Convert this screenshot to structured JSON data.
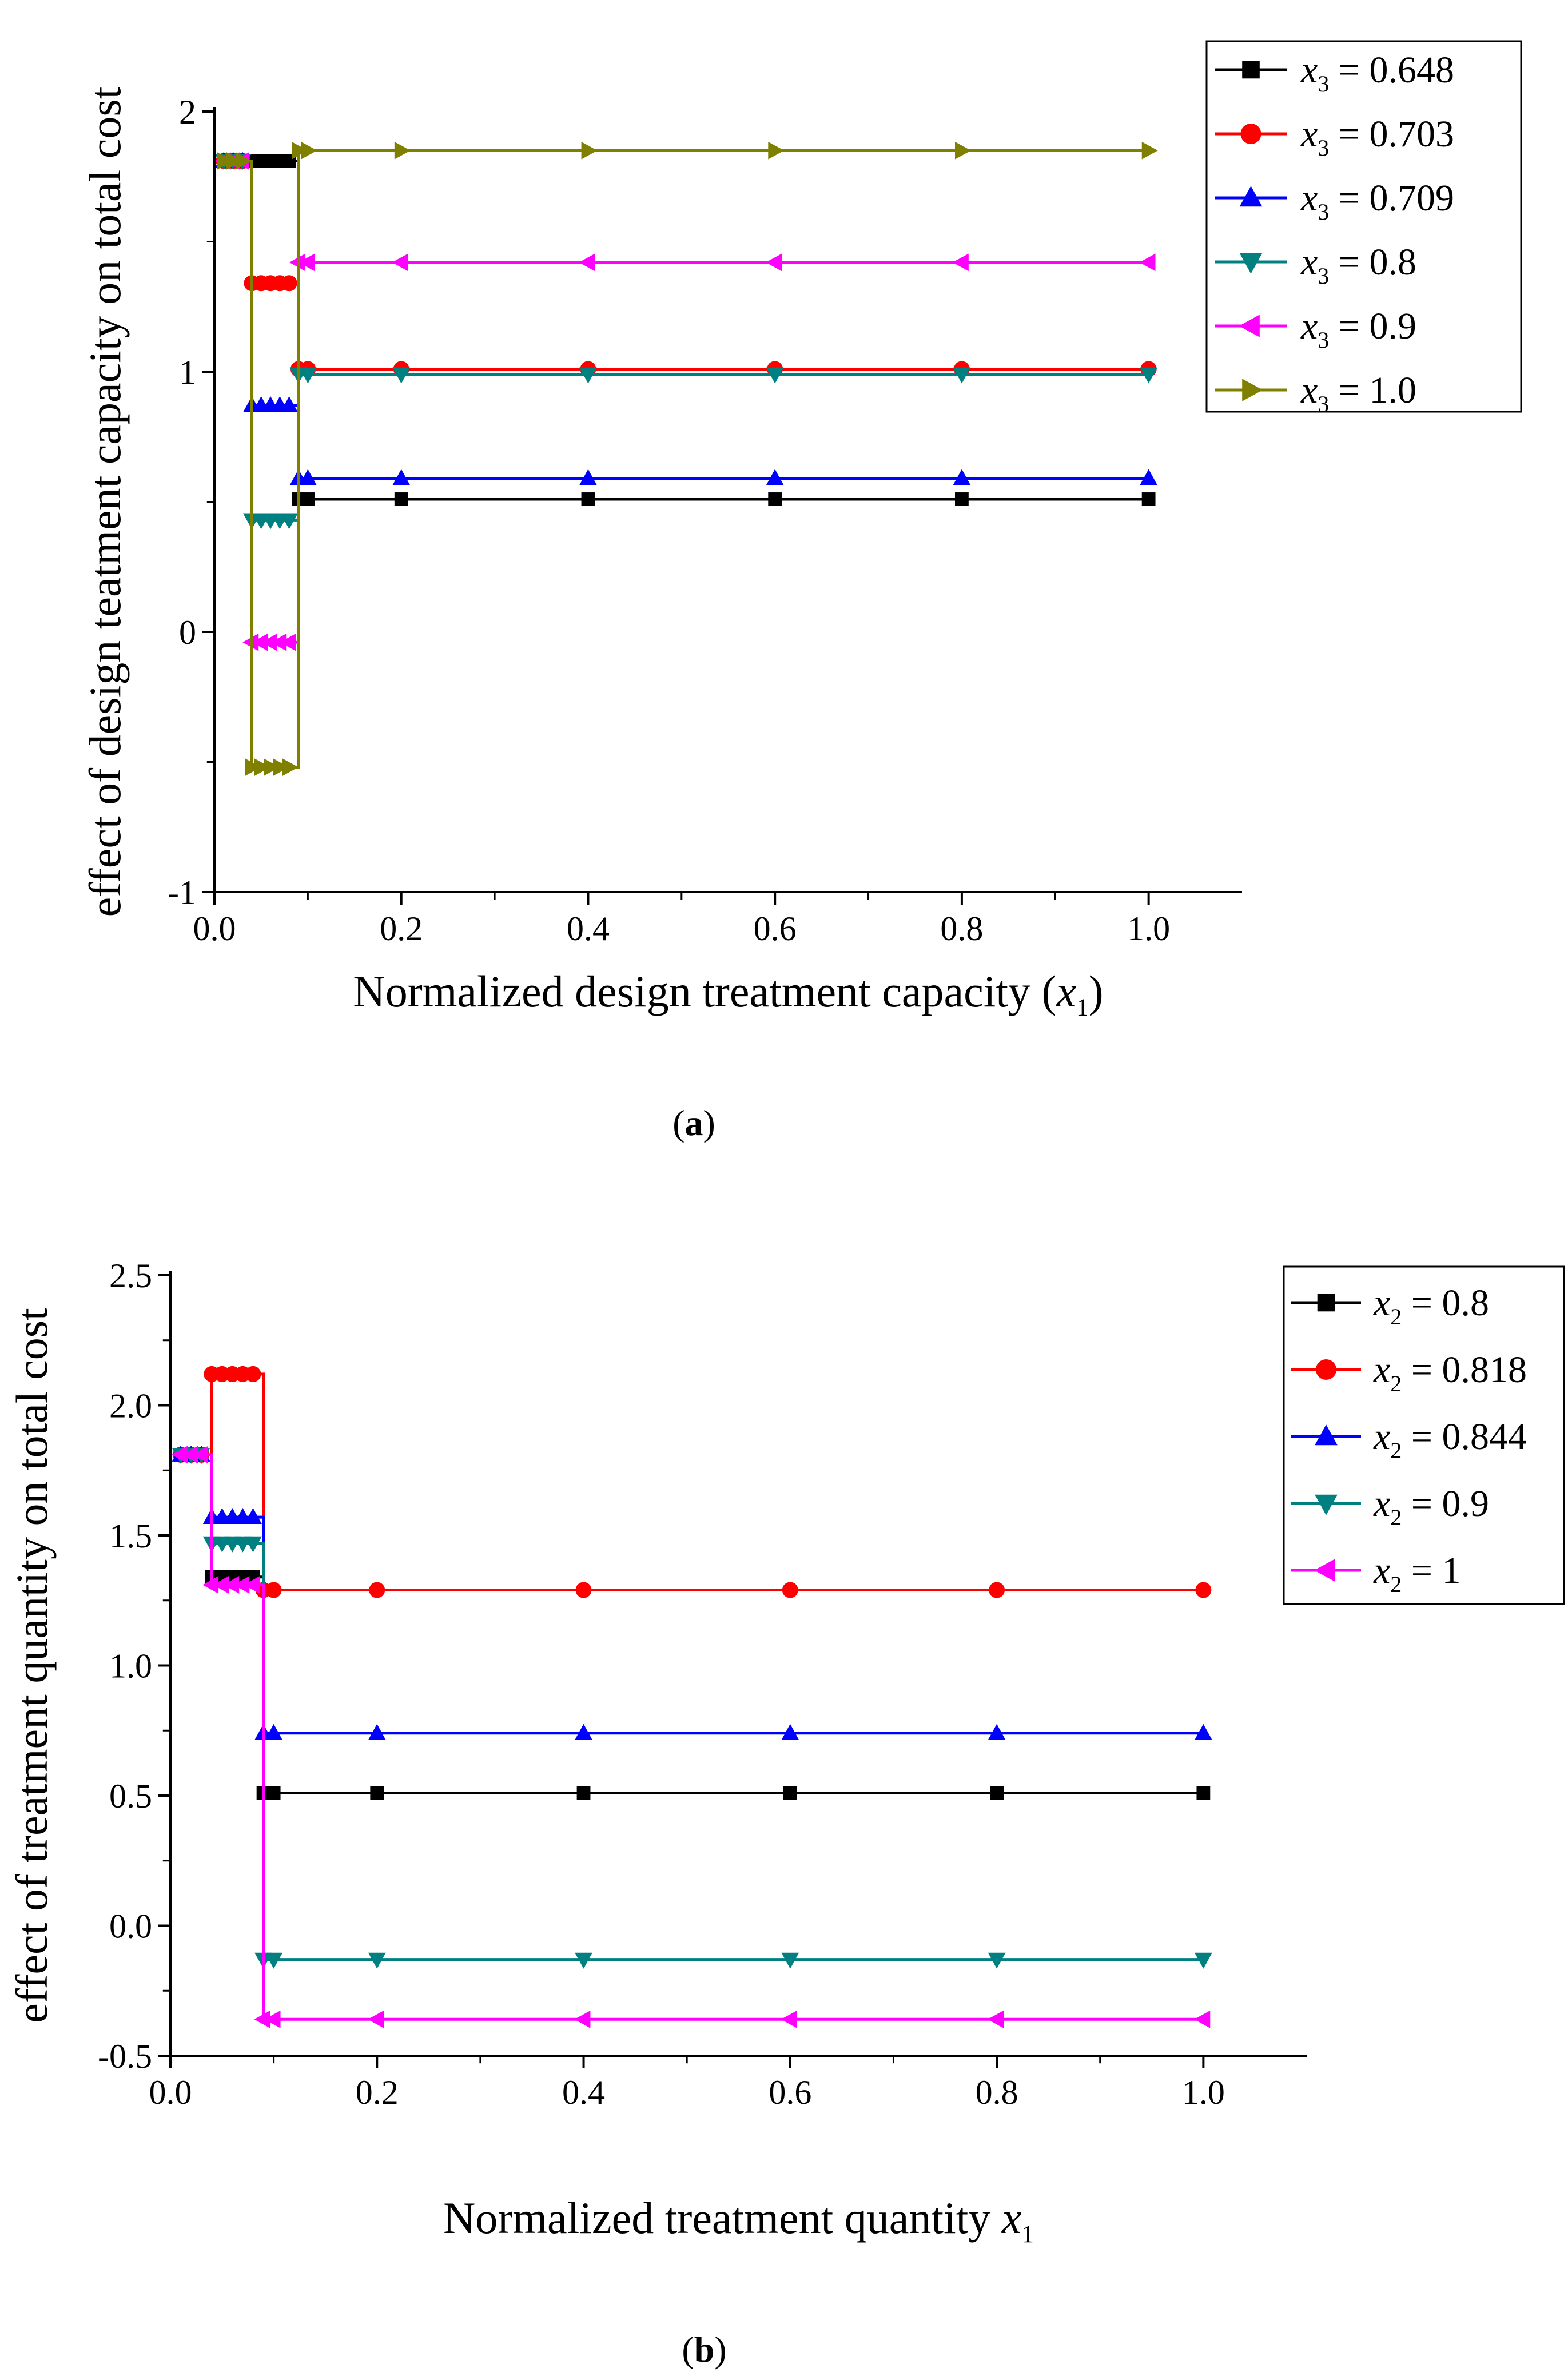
{
  "chart_data": [
    {
      "id": "a",
      "type": "line",
      "panel_label": "a",
      "xlabel": "Normalized design treatment capacity (x1)",
      "xlabel_parts": {
        "prefix": "Normalized design treatment capacity (",
        "var": "x",
        "sub": "1",
        "suffix": ")"
      },
      "ylabel": "effect of design teatment capacity on total cost",
      "xlim": [
        0.0,
        1.1
      ],
      "ylim": [
        -1,
        2
      ],
      "xticks": [
        0.0,
        0.2,
        0.4,
        0.6,
        0.8,
        1.0
      ],
      "xtick_labels": [
        "0.0",
        "0.2",
        "0.4",
        "0.6",
        "0.8",
        "1.0"
      ],
      "yticks": [
        -1,
        0,
        1,
        2
      ],
      "ytick_labels": [
        "-1",
        "0",
        "1",
        "2"
      ],
      "legend_var": "x",
      "legend_sub": "3",
      "series": [
        {
          "name": "x3 = 0.648",
          "value_label": "0.648",
          "color": "#000000",
          "marker": "square",
          "x": [
            0.01,
            0.02,
            0.03,
            0.04,
            0.05,
            0.06,
            0.07,
            0.08,
            0.09,
            0.1,
            0.2,
            0.4,
            0.6,
            0.8,
            1.0
          ],
          "y": [
            1.81,
            1.81,
            1.81,
            1.81,
            1.81,
            1.81,
            1.81,
            1.81,
            0.51,
            0.51,
            0.51,
            0.51,
            0.51,
            0.51,
            0.51
          ]
        },
        {
          "name": "x3 = 0.703",
          "value_label": "0.703",
          "color": "#ff0000",
          "marker": "circle",
          "x": [
            0.01,
            0.02,
            0.03,
            0.04,
            0.05,
            0.06,
            0.07,
            0.08,
            0.09,
            0.1,
            0.2,
            0.4,
            0.6,
            0.8,
            1.0
          ],
          "y": [
            1.81,
            1.81,
            1.81,
            1.34,
            1.34,
            1.34,
            1.34,
            1.34,
            1.01,
            1.01,
            1.01,
            1.01,
            1.01,
            1.01,
            1.01
          ]
        },
        {
          "name": "x3 = 0.709",
          "value_label": "0.709",
          "color": "#0000ff",
          "marker": "triangle-up",
          "x": [
            0.01,
            0.02,
            0.03,
            0.04,
            0.05,
            0.06,
            0.07,
            0.08,
            0.09,
            0.1,
            0.2,
            0.4,
            0.6,
            0.8,
            1.0
          ],
          "y": [
            1.81,
            1.81,
            1.81,
            0.87,
            0.87,
            0.87,
            0.87,
            0.87,
            0.59,
            0.59,
            0.59,
            0.59,
            0.59,
            0.59,
            0.59
          ]
        },
        {
          "name": "x3 = 0.8",
          "value_label": "0.8",
          "color": "#008080",
          "marker": "triangle-down",
          "x": [
            0.01,
            0.02,
            0.03,
            0.04,
            0.05,
            0.06,
            0.07,
            0.08,
            0.09,
            0.1,
            0.2,
            0.4,
            0.6,
            0.8,
            1.0
          ],
          "y": [
            1.81,
            1.81,
            1.81,
            0.43,
            0.43,
            0.43,
            0.43,
            0.43,
            0.99,
            0.99,
            0.99,
            0.99,
            0.99,
            0.99,
            0.99
          ]
        },
        {
          "name": "x3 = 0.9",
          "value_label": "0.9",
          "color": "#ff00ff",
          "marker": "triangle-left",
          "x": [
            0.01,
            0.02,
            0.03,
            0.04,
            0.05,
            0.06,
            0.07,
            0.08,
            0.09,
            0.1,
            0.2,
            0.4,
            0.6,
            0.8,
            1.0
          ],
          "y": [
            1.81,
            1.81,
            1.81,
            -0.04,
            -0.04,
            -0.04,
            -0.04,
            -0.04,
            1.42,
            1.42,
            1.42,
            1.42,
            1.42,
            1.42,
            1.42
          ]
        },
        {
          "name": "x3 = 1.0",
          "value_label": "1.0",
          "color": "#808000",
          "marker": "triangle-right",
          "x": [
            0.01,
            0.02,
            0.03,
            0.04,
            0.05,
            0.06,
            0.07,
            0.08,
            0.09,
            0.1,
            0.2,
            0.4,
            0.6,
            0.8,
            1.0
          ],
          "y": [
            1.81,
            1.81,
            1.81,
            -0.52,
            -0.52,
            -0.52,
            -0.52,
            -0.52,
            1.85,
            1.85,
            1.85,
            1.85,
            1.85,
            1.85,
            1.85
          ]
        }
      ]
    },
    {
      "id": "b",
      "type": "line",
      "panel_label": "b",
      "xlabel": "Normalized treatment quantity x1",
      "xlabel_parts": {
        "prefix": "Normalized treatment quantity ",
        "var": "x",
        "sub": "1",
        "suffix": ""
      },
      "ylabel": "effect of treatment quantity on total cost",
      "xlim": [
        0.0,
        1.1
      ],
      "ylim": [
        -0.5,
        2.5
      ],
      "xticks": [
        0.0,
        0.2,
        0.4,
        0.6,
        0.8,
        1.0
      ],
      "xtick_labels": [
        "0.0",
        "0.2",
        "0.4",
        "0.6",
        "0.8",
        "1.0"
      ],
      "yticks": [
        -0.5,
        0.0,
        0.5,
        1.0,
        1.5,
        2.0,
        2.5
      ],
      "ytick_labels": [
        "-0.5",
        "0.0",
        "0.5",
        "1.0",
        "1.5",
        "2.0",
        "2.5"
      ],
      "legend_var": "x",
      "legend_sub": "2",
      "series": [
        {
          "name": "x2 = 0.8",
          "value_label": "0.8",
          "color": "#000000",
          "marker": "square",
          "x": [
            0.01,
            0.02,
            0.03,
            0.04,
            0.05,
            0.06,
            0.07,
            0.08,
            0.09,
            0.1,
            0.2,
            0.4,
            0.6,
            0.8,
            1.0
          ],
          "y": [
            1.81,
            1.81,
            1.81,
            1.34,
            1.34,
            1.34,
            1.34,
            1.34,
            0.51,
            0.51,
            0.51,
            0.51,
            0.51,
            0.51,
            0.51
          ]
        },
        {
          "name": "x2 = 0.818",
          "value_label": "0.818",
          "color": "#ff0000",
          "marker": "circle",
          "x": [
            0.01,
            0.02,
            0.03,
            0.04,
            0.05,
            0.06,
            0.07,
            0.08,
            0.09,
            0.1,
            0.2,
            0.4,
            0.6,
            0.8,
            1.0
          ],
          "y": [
            1.81,
            1.81,
            1.81,
            2.12,
            2.12,
            2.12,
            2.12,
            2.12,
            1.29,
            1.29,
            1.29,
            1.29,
            1.29,
            1.29,
            1.29
          ]
        },
        {
          "name": "x2 = 0.844",
          "value_label": "0.844",
          "color": "#0000ff",
          "marker": "triangle-up",
          "x": [
            0.01,
            0.02,
            0.03,
            0.04,
            0.05,
            0.06,
            0.07,
            0.08,
            0.09,
            0.1,
            0.2,
            0.4,
            0.6,
            0.8,
            1.0
          ],
          "y": [
            1.81,
            1.81,
            1.81,
            1.57,
            1.57,
            1.57,
            1.57,
            1.57,
            0.74,
            0.74,
            0.74,
            0.74,
            0.74,
            0.74,
            0.74
          ]
        },
        {
          "name": "x2 = 0.9",
          "value_label": "0.9",
          "color": "#008080",
          "marker": "triangle-down",
          "x": [
            0.01,
            0.02,
            0.03,
            0.04,
            0.05,
            0.06,
            0.07,
            0.08,
            0.09,
            0.1,
            0.2,
            0.4,
            0.6,
            0.8,
            1.0
          ],
          "y": [
            1.81,
            1.81,
            1.81,
            1.47,
            1.47,
            1.47,
            1.47,
            1.47,
            -0.13,
            -0.13,
            -0.13,
            -0.13,
            -0.13,
            -0.13,
            -0.13
          ]
        },
        {
          "name": "x2 = 1",
          "value_label": "1",
          "color": "#ff00ff",
          "marker": "triangle-left",
          "x": [
            0.01,
            0.02,
            0.03,
            0.04,
            0.05,
            0.06,
            0.07,
            0.08,
            0.09,
            0.1,
            0.2,
            0.4,
            0.6,
            0.8,
            1.0
          ],
          "y": [
            1.81,
            1.81,
            1.81,
            1.31,
            1.31,
            1.31,
            1.31,
            1.31,
            -0.36,
            -0.36,
            -0.36,
            -0.36,
            -0.36,
            -0.36,
            -0.36
          ]
        }
      ]
    }
  ]
}
